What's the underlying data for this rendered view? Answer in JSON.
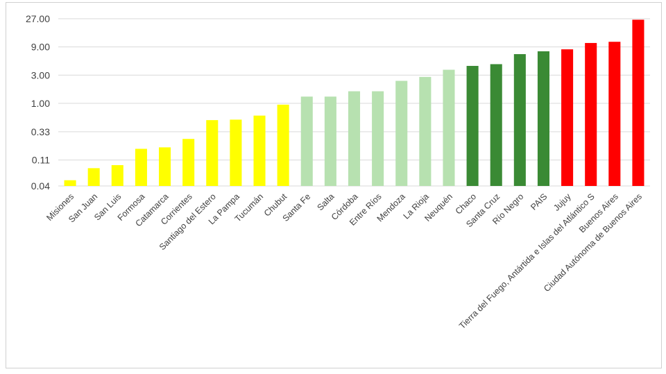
{
  "chart_data": {
    "type": "bar",
    "scale": "log",
    "title": "",
    "xlabel": "",
    "ylabel": "",
    "ylim": [
      0.04,
      27
    ],
    "yticks": [
      0.04,
      0.11,
      0.33,
      1.0,
      3.0,
      9.0,
      27.0
    ],
    "ytick_labels": [
      "0.04",
      "0.11",
      "0.33",
      "1.00",
      "3.00",
      "9.00",
      "27.00"
    ],
    "grid": true,
    "legend": "none",
    "categories": [
      "Misiones",
      "San Juan",
      "San Luis",
      "Formosa",
      "Catamarca",
      "Corrientes",
      "Santiago del Estero",
      "La Pampa",
      "Tucumán",
      "Chubut",
      "Santa Fe",
      "Salta",
      "Córdoba",
      "Entre Ríos",
      "Mendoza",
      "La Rioja",
      "Neuquén",
      "Chaco",
      "Santa Cruz",
      "Río Negro",
      "PAIS",
      "Jujuy",
      "Tierra del Fuego, Antártida e Islas del Atlántico S",
      "Buenos Aires",
      "Ciudad Autónoma de Buenos Aires"
    ],
    "values": [
      0.05,
      0.08,
      0.09,
      0.17,
      0.18,
      0.25,
      0.52,
      0.53,
      0.62,
      0.95,
      1.3,
      1.3,
      1.6,
      1.6,
      2.4,
      2.8,
      3.7,
      4.3,
      4.6,
      6.8,
      7.6,
      8.2,
      10.5,
      11.0,
      26.0
    ],
    "colors": [
      "#ffff00",
      "#ffff00",
      "#ffff00",
      "#ffff00",
      "#ffff00",
      "#ffff00",
      "#ffff00",
      "#ffff00",
      "#ffff00",
      "#ffff00",
      "#b7e1b0",
      "#b7e1b0",
      "#b7e1b0",
      "#b7e1b0",
      "#b7e1b0",
      "#b7e1b0",
      "#b7e1b0",
      "#3a8a34",
      "#3a8a34",
      "#3a8a34",
      "#3a8a34",
      "#ff0000",
      "#ff0000",
      "#ff0000",
      "#ff0000"
    ],
    "gridline_color": "#d9d9d9",
    "frame_color": "#d0d0d0",
    "text_color": "#404040"
  }
}
